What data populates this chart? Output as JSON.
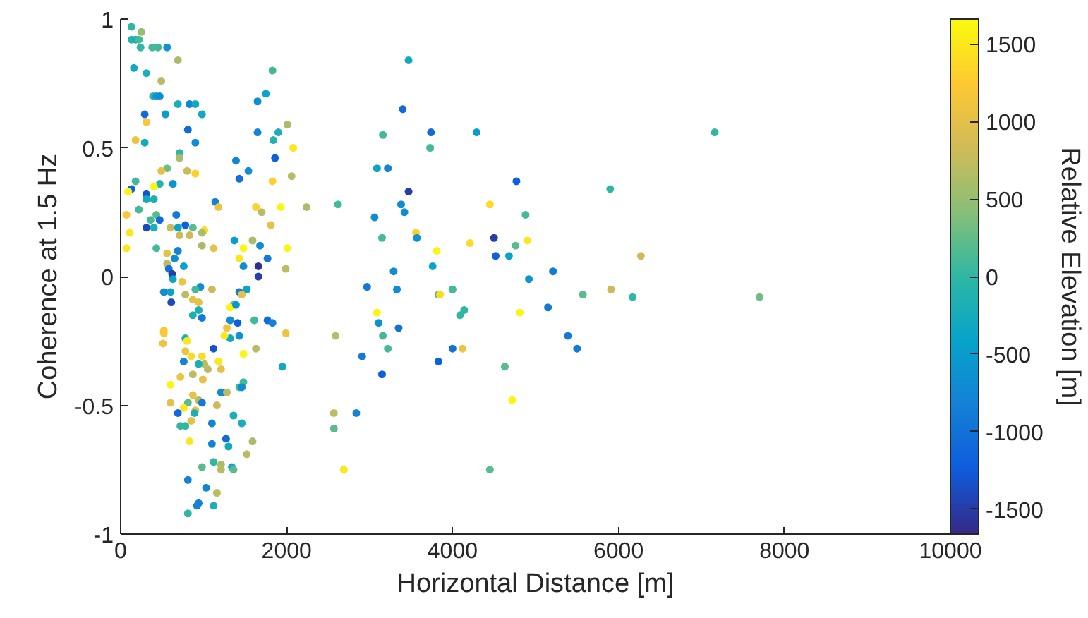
{
  "chart_data": {
    "type": "scatter",
    "xlabel": "Horizontal Distance [m]",
    "ylabel": "Coherence at 1.5 Hz",
    "clabel": "Relative Elevation [m]",
    "xlim": [
      0,
      10000
    ],
    "xticks": [
      0,
      2000,
      4000,
      6000,
      8000,
      10000
    ],
    "ylim": [
      -1,
      1
    ],
    "yticks": [
      -1,
      -0.5,
      0,
      0.5,
      1
    ],
    "clim": [
      -1660,
      1660
    ],
    "cticks": [
      -1500,
      -1000,
      -500,
      0,
      500,
      1000,
      1500
    ],
    "marker": "circle",
    "grid": false,
    "x": [
      3470,
      3400,
      3160,
      3740,
      4290,
      7160,
      3730,
      3090,
      3220,
      3470,
      4770,
      5900,
      2620,
      3380,
      3060,
      3420,
      4450,
      4880,
      3150,
      3560,
      3570,
      4210,
      4500,
      4760,
      4900,
      3810,
      4520,
      4680,
      6270,
      3760,
      3290,
      5210,
      2970,
      3330,
      4000,
      3830,
      3850,
      4920,
      5570,
      5910,
      6170,
      7700,
      4140,
      4090,
      3090,
      4810,
      5150,
      2590,
      3110,
      3350,
      3160,
      5390,
      3220,
      4000,
      4120,
      5500,
      2910,
      3830,
      3150,
      4630,
      4720,
      2570,
      2840,
      2570,
      2690,
      4450,
      130,
      250,
      130,
      180,
      220,
      240,
      380,
      450,
      560,
      690,
      160,
      310,
      490,
      1830,
      390,
      430,
      470,
      690,
      830,
      900,
      1750,
      1650,
      290,
      540,
      980,
      310,
      810,
      2010,
      1650,
      1900,
      1840,
      180,
      290,
      900,
      2080,
      710,
      710,
      1390,
      1860,
      560,
      490,
      800,
      900,
      1540,
      1430,
      2060,
      1830,
      180,
      470,
      400,
      630,
      130,
      90,
      310,
      310,
      400,
      1140,
      1180,
      1630,
      1700,
      1930,
      2240,
      70,
      220,
      430,
      670,
      360,
      470,
      310,
      400,
      600,
      690,
      780,
      870,
      1010,
      110,
      710,
      830,
      980,
      1810,
      1370,
      1590,
      70,
      430,
      690,
      980,
      1120,
      1480,
      1680,
      2010,
      560,
      650,
      1430,
      1770,
      560,
      580,
      760,
      620,
      1480,
      1660,
      1990,
      1660,
      630,
      740,
      960,
      900,
      1100,
      520,
      600,
      780,
      1430,
      1520,
      1460,
      870,
      940,
      610,
      1360,
      1320,
      1390,
      870,
      940,
      980,
      1320,
      1610,
      1770,
      1830,
      1410,
      1280,
      520,
      520,
      1990,
      780,
      1320,
      1430,
      510,
      800,
      1250,
      1120,
      780,
      1480,
      1630,
      850,
      980,
      760,
      1010,
      940,
      1180,
      1210,
      1050,
      1950,
      720,
      870,
      990,
      600,
      1210,
      1250,
      1280,
      1430,
      1480,
      1460,
      870,
      940,
      810,
      980,
      600,
      1160,
      760,
      690,
      900,
      890,
      850,
      720,
      780,
      1360,
      1460,
      1100,
      830,
      1100,
      1270,
      1300,
      1590,
      1520,
      1120,
      1210,
      980,
      1340,
      1360,
      1210,
      810,
      1030,
      1160,
      940,
      920,
      1120,
      810
    ],
    "values": [
      0.84,
      0.65,
      0.55,
      0.56,
      0.56,
      0.56,
      0.5,
      0.42,
      0.42,
      0.33,
      0.37,
      0.34,
      0.28,
      0.28,
      0.23,
      0.25,
      0.28,
      0.24,
      0.15,
      0.17,
      0.15,
      0.13,
      0.15,
      0.12,
      0.14,
      0.1,
      0.08,
      0.08,
      0.08,
      0.04,
      0.02,
      0.02,
      -0.04,
      -0.05,
      -0.05,
      -0.07,
      -0.07,
      -0.01,
      -0.07,
      -0.05,
      -0.08,
      -0.08,
      -0.13,
      -0.15,
      -0.14,
      -0.14,
      -0.12,
      -0.23,
      -0.18,
      -0.2,
      -0.23,
      -0.23,
      -0.28,
      -0.28,
      -0.28,
      -0.28,
      -0.31,
      -0.33,
      -0.38,
      -0.35,
      -0.48,
      -0.53,
      -0.53,
      -0.59,
      -0.75,
      -0.75,
      0.97,
      0.95,
      0.92,
      0.92,
      0.92,
      0.89,
      0.89,
      0.89,
      0.89,
      0.84,
      0.81,
      0.79,
      0.76,
      0.8,
      0.7,
      0.7,
      0.7,
      0.67,
      0.67,
      0.67,
      0.71,
      0.68,
      0.63,
      0.63,
      0.63,
      0.6,
      0.57,
      0.59,
      0.56,
      0.56,
      0.53,
      0.53,
      0.52,
      0.52,
      0.5,
      0.48,
      0.46,
      0.45,
      0.46,
      0.42,
      0.41,
      0.41,
      0.4,
      0.41,
      0.38,
      0.39,
      0.37,
      0.37,
      0.36,
      0.35,
      0.36,
      0.34,
      0.33,
      0.32,
      0.3,
      0.3,
      0.29,
      0.27,
      0.27,
      0.25,
      0.27,
      0.27,
      0.24,
      0.26,
      0.24,
      0.24,
      0.22,
      0.22,
      0.19,
      0.19,
      0.19,
      0.19,
      0.2,
      0.19,
      0.18,
      0.17,
      0.16,
      0.16,
      0.17,
      0.2,
      0.14,
      0.14,
      0.11,
      0.11,
      0.1,
      0.12,
      0.11,
      0.11,
      0.12,
      0.11,
      0.09,
      0.07,
      0.07,
      0.07,
      0.05,
      0.03,
      0.04,
      0.01,
      0.04,
      0.04,
      0.03,
      0.0,
      -0.01,
      -0.02,
      -0.04,
      -0.05,
      -0.05,
      -0.06,
      -0.06,
      -0.07,
      -0.06,
      -0.05,
      -0.07,
      -0.09,
      -0.1,
      -0.1,
      -0.11,
      -0.12,
      -0.11,
      -0.15,
      -0.13,
      -0.16,
      -0.17,
      -0.17,
      -0.17,
      -0.18,
      -0.18,
      -0.2,
      -0.21,
      -0.22,
      -0.22,
      -0.24,
      -0.24,
      -0.23,
      -0.26,
      -0.25,
      -0.23,
      -0.28,
      -0.29,
      -0.3,
      -0.28,
      -0.31,
      -0.31,
      -0.33,
      -0.34,
      -0.34,
      -0.33,
      -0.36,
      -0.36,
      -0.35,
      -0.39,
      -0.38,
      -0.4,
      -0.42,
      -0.45,
      -0.45,
      -0.45,
      -0.43,
      -0.41,
      -0.43,
      -0.46,
      -0.48,
      -0.49,
      -0.49,
      -0.49,
      -0.5,
      -0.51,
      -0.53,
      -0.52,
      -0.53,
      -0.56,
      -0.58,
      -0.58,
      -0.54,
      -0.57,
      -0.57,
      -0.64,
      -0.65,
      -0.63,
      -0.66,
      -0.64,
      -0.69,
      -0.72,
      -0.73,
      -0.74,
      -0.74,
      -0.75,
      -0.75,
      -0.79,
      -0.82,
      -0.84,
      -0.88,
      -0.89,
      -0.89,
      -0.92
    ],
    "cvalues": [
      -300,
      -1100,
      100,
      -1100,
      -500,
      0,
      100,
      -400,
      -800,
      -1500,
      -1200,
      0,
      100,
      -700,
      -700,
      -700,
      1400,
      100,
      100,
      1300,
      -600,
      1400,
      -1500,
      200,
      1500,
      1600,
      -1200,
      -400,
      800,
      -400,
      -700,
      -900,
      -900,
      -700,
      100,
      200,
      1400,
      -600,
      200,
      800,
      0,
      300,
      0,
      0,
      1600,
      1600,
      -900,
      700,
      -600,
      -1000,
      100,
      -900,
      100,
      -1000,
      1100,
      -900,
      -900,
      -1200,
      -1200,
      200,
      1600,
      700,
      -800,
      200,
      1500,
      200,
      0,
      500,
      -100,
      -200,
      100,
      0,
      100,
      100,
      -600,
      600,
      -300,
      -200,
      700,
      100,
      0,
      -600,
      -700,
      -200,
      -800,
      -300,
      -400,
      -700,
      -1100,
      -500,
      -300,
      1200,
      -1100,
      600,
      -800,
      -200,
      -100,
      1100,
      -300,
      -700,
      1500,
      0,
      600,
      -800,
      -1200,
      300,
      1000,
      800,
      1300,
      -700,
      -1000,
      700,
      1300,
      100,
      -100,
      1600,
      -600,
      -1200,
      1600,
      -1300,
      -300,
      -200,
      -800,
      1100,
      1300,
      700,
      1600,
      600,
      1200,
      100,
      200,
      -900,
      100,
      -1100,
      -1400,
      -200,
      800,
      -400,
      -1200,
      200,
      1400,
      1500,
      800,
      800,
      600,
      1000,
      -500,
      600,
      1500,
      100,
      -800,
      600,
      1000,
      1600,
      -700,
      1600,
      1000,
      -700,
      1500,
      -900,
      700,
      -1000,
      -400,
      -1500,
      -700,
      -1600,
      700,
      -1500,
      -400,
      1100,
      -700,
      100,
      800,
      -700,
      -400,
      700,
      -900,
      -400,
      1000,
      1000,
      1000,
      -1400,
      200,
      1600,
      -600,
      -200,
      -200,
      -900,
      -700,
      100,
      -1100,
      -800,
      -1200,
      1100,
      1200,
      1200,
      1100,
      -200,
      -300,
      -600,
      1100,
      1500,
      1500,
      -1300,
      1100,
      1600,
      700,
      1400,
      1400,
      -800,
      700,
      -200,
      1500,
      1000,
      700,
      -300,
      1100,
      700,
      1000,
      1600,
      -700,
      -700,
      700,
      100,
      100,
      -700,
      1000,
      700,
      200,
      -900,
      1000,
      800,
      1500,
      -1100,
      1000,
      -200,
      1000,
      0,
      0,
      -200,
      -200,
      -800,
      1500,
      -800,
      -1100,
      -300,
      600,
      700,
      0,
      600,
      200,
      -300,
      200,
      700,
      -800,
      -800,
      700,
      -800,
      -800,
      -200,
      0
    ]
  }
}
